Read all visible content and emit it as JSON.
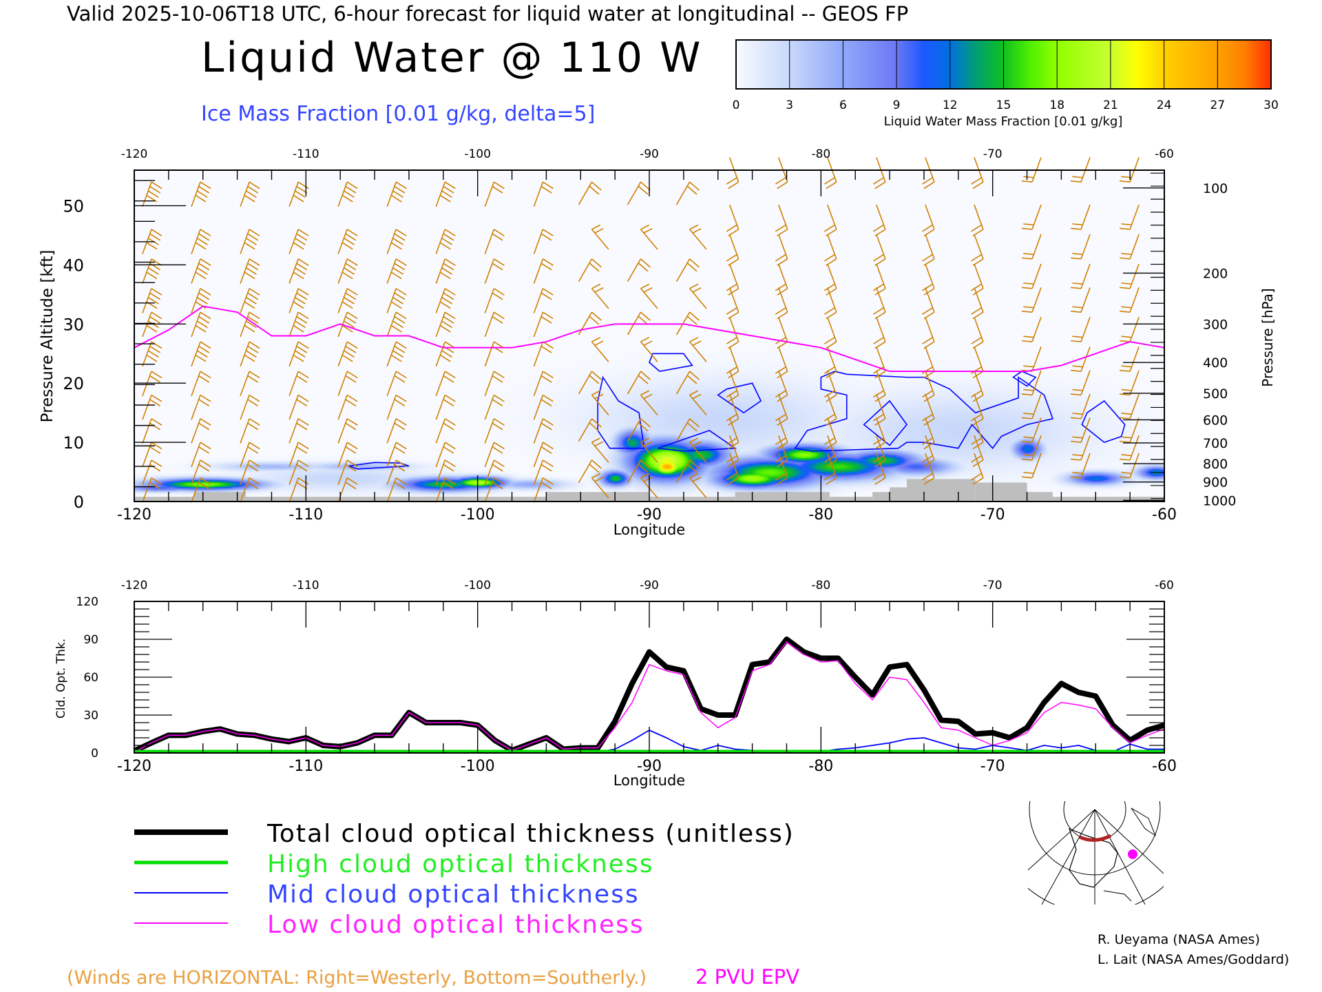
{
  "header": {
    "valid_line": "Valid 2025-10-06T18 UTC, 6-hour forecast for liquid water at longitudinal -- GEOS FP",
    "title": "Liquid Water @ 110 W",
    "subtitle": "Ice Mass Fraction [0.01 g/kg, delta=5]"
  },
  "colorbar": {
    "ticks": [
      "0",
      "3",
      "6",
      "9",
      "12",
      "15",
      "18",
      "21",
      "24",
      "27",
      "30"
    ],
    "label": "Liquid Water Mass Fraction [0.01 g/kg]",
    "stops": [
      [
        0,
        "#f8faff"
      ],
      [
        3,
        "#c8d8fb"
      ],
      [
        6,
        "#90a8fa"
      ],
      [
        9,
        "#6c78f6"
      ],
      [
        10.5,
        "#1e58ff"
      ],
      [
        12,
        "#0070e0"
      ],
      [
        13.5,
        "#00a070"
      ],
      [
        15,
        "#10c020"
      ],
      [
        16.5,
        "#50f000"
      ],
      [
        18,
        "#90ff00"
      ],
      [
        21,
        "#c8ff30"
      ],
      [
        22.5,
        "#ffff00"
      ],
      [
        24,
        "#ffd000"
      ],
      [
        27,
        "#ffa000"
      ],
      [
        28.5,
        "#ff8000"
      ],
      [
        30,
        "#ff3000"
      ]
    ]
  },
  "legend": {
    "total": "Total cloud optical thickness (unitless)",
    "high": "High cloud optical thickness",
    "mid": "Mid cloud optical thickness",
    "low": "Low cloud optical thickness"
  },
  "footer": {
    "winds_note": "(Winds are HORIZONTAL: Right=Westerly, Bottom=Southerly.)",
    "epv_label": "2 PVU EPV",
    "credit1": "R. Ueyama (NASA Ames)",
    "credit2": "L. Lait (NASA Ames/Goddard)"
  },
  "colors": {
    "total": "#000000",
    "high": "#00dd00",
    "mid": "#0000ff",
    "low": "#ff00ff",
    "wind": "#d08000",
    "ice": "#0000ff",
    "ground": "#bebebe",
    "epv": "#ff00ff",
    "track": "#b22222"
  },
  "chart_data": [
    {
      "type": "heatmap",
      "title": "Liquid Water @ 110 W",
      "xlabel": "Longitude",
      "ylabel": "Pressure Altitude [kft]",
      "ylabel_right": "Pressure [hPa]",
      "xlim": [
        -120,
        -60
      ],
      "ylim": [
        0,
        56
      ],
      "x_ticks": [
        "-120",
        "-110",
        "-100",
        "-90",
        "-80",
        "-70",
        "-60"
      ],
      "y_ticks": [
        "0",
        "10",
        "20",
        "30",
        "40",
        "50"
      ],
      "pressure_ticks": [
        {
          "label": "100",
          "kft": 53
        },
        {
          "label": "200",
          "kft": 38.6
        },
        {
          "label": "300",
          "kft": 30
        },
        {
          "label": "400",
          "kft": 23.5
        },
        {
          "label": "500",
          "kft": 18.3
        },
        {
          "label": "600",
          "kft": 13.8
        },
        {
          "label": "700",
          "kft": 9.9
        },
        {
          "label": "800",
          "kft": 6.4
        },
        {
          "label": "900",
          "kft": 3.3
        },
        {
          "label": "1000",
          "kft": 0.2
        }
      ],
      "liquid_water_cells": [
        {
          "lon": -116,
          "kft": 3,
          "dlon": 3,
          "dkft": 0.9,
          "value": 18
        },
        {
          "lon": -118.5,
          "kft": 2.4,
          "dlon": 2,
          "dkft": 0.6,
          "value": 10
        },
        {
          "lon": -112,
          "kft": 6,
          "dlon": 3,
          "dkft": 0.7,
          "value": 5
        },
        {
          "lon": -107,
          "kft": 6,
          "dlon": 3,
          "dkft": 0.7,
          "value": 5
        },
        {
          "lon": -102,
          "kft": 3,
          "dlon": 2.5,
          "dkft": 1.1,
          "value": 15
        },
        {
          "lon": -100,
          "kft": 3.3,
          "dlon": 1.5,
          "dkft": 0.9,
          "value": 20
        },
        {
          "lon": -97,
          "kft": 3,
          "dlon": 2,
          "dkft": 0.8,
          "value": 6
        },
        {
          "lon": -92,
          "kft": 4,
          "dlon": 0.8,
          "dkft": 1.2,
          "value": 15
        },
        {
          "lon": -91,
          "kft": 10,
          "dlon": 0.9,
          "dkft": 2,
          "value": 14
        },
        {
          "lon": -89,
          "kft": 7,
          "dlon": 2,
          "dkft": 3,
          "value": 22
        },
        {
          "lon": -89,
          "kft": 6,
          "dlon": 0.9,
          "dkft": 1.5,
          "value": 26
        },
        {
          "lon": -87,
          "kft": 8,
          "dlon": 1.5,
          "dkft": 2,
          "value": 15
        },
        {
          "lon": -83,
          "kft": 5,
          "dlon": 3,
          "dkft": 2.3,
          "value": 17
        },
        {
          "lon": -84,
          "kft": 4,
          "dlon": 2,
          "dkft": 1.5,
          "value": 19
        },
        {
          "lon": -81,
          "kft": 8,
          "dlon": 2,
          "dkft": 1.5,
          "value": 18
        },
        {
          "lon": -79,
          "kft": 6,
          "dlon": 3,
          "dkft": 2,
          "value": 16
        },
        {
          "lon": -76.5,
          "kft": 7,
          "dlon": 2,
          "dkft": 1.5,
          "value": 15
        },
        {
          "lon": -74.5,
          "kft": 6,
          "dlon": 2,
          "dkft": 1.3,
          "value": 10
        },
        {
          "lon": -68,
          "kft": 9,
          "dlon": 0.8,
          "dkft": 1.5,
          "value": 12
        },
        {
          "lon": -64,
          "kft": 4,
          "dlon": 1.5,
          "dkft": 1,
          "value": 12
        },
        {
          "lon": -60.5,
          "kft": 5,
          "dlon": 1,
          "dkft": 1,
          "value": 13
        },
        {
          "lon": -86,
          "kft": 14,
          "dlon": 7,
          "dkft": 6,
          "value": 3
        },
        {
          "lon": -72,
          "kft": 12,
          "dlon": 7,
          "dkft": 6,
          "value": 3
        },
        {
          "lon": -108,
          "kft": 4,
          "dlon": 5,
          "dkft": 2,
          "value": 3
        }
      ],
      "ice_contours": [
        [
          [
            -92.7,
            21
          ],
          [
            -91.8,
            17
          ],
          [
            -90.6,
            15
          ],
          [
            -90.3,
            9
          ],
          [
            -92.3,
            9
          ],
          [
            -93,
            12
          ],
          [
            -93,
            17
          ]
        ],
        [
          [
            -89.8,
            25
          ],
          [
            -88,
            25
          ],
          [
            -87.5,
            23
          ],
          [
            -89.4,
            22
          ],
          [
            -90,
            23.5
          ]
        ],
        [
          [
            -89.5,
            9
          ],
          [
            -86.5,
            12
          ],
          [
            -85,
            9
          ],
          [
            -88,
            8.5
          ]
        ],
        [
          [
            -85.5,
            19
          ],
          [
            -84,
            20
          ],
          [
            -83.5,
            17
          ],
          [
            -84.5,
            15
          ],
          [
            -86,
            18
          ]
        ],
        [
          [
            -79.2,
            22
          ],
          [
            -78.5,
            21.5
          ],
          [
            -75,
            21
          ],
          [
            -74,
            21
          ],
          [
            -72.5,
            19
          ],
          [
            -71,
            15
          ],
          [
            -68.5,
            17.5
          ],
          [
            -68.5,
            21
          ],
          [
            -67,
            18
          ],
          [
            -66.5,
            14
          ],
          [
            -68,
            13
          ],
          [
            -69.5,
            11
          ],
          [
            -70,
            9
          ],
          [
            -71.2,
            13
          ],
          [
            -72,
            9
          ],
          [
            -74,
            10
          ],
          [
            -75,
            10
          ],
          [
            -75.5,
            9
          ],
          [
            -80.5,
            8.5
          ],
          [
            -81.5,
            9
          ],
          [
            -80.8,
            12
          ],
          [
            -78.5,
            14
          ],
          [
            -78.5,
            18
          ],
          [
            -80,
            19
          ],
          [
            -80,
            21
          ]
        ],
        [
          [
            -76,
            17
          ],
          [
            -75,
            13
          ],
          [
            -76,
            9.5
          ],
          [
            -77.5,
            13
          ]
        ],
        [
          [
            -63.5,
            17
          ],
          [
            -62.3,
            13
          ],
          [
            -62.5,
            11
          ],
          [
            -63.5,
            10
          ],
          [
            -64.8,
            13
          ],
          [
            -64.5,
            15
          ]
        ],
        [
          [
            -68.3,
            22
          ],
          [
            -68.8,
            21
          ],
          [
            -68,
            19.5
          ],
          [
            -67.5,
            21
          ]
        ],
        [
          [
            -107.5,
            6
          ],
          [
            -106,
            6.6
          ],
          [
            -104.5,
            6.5
          ],
          [
            -104,
            6
          ],
          [
            -107,
            5.5
          ]
        ]
      ],
      "epv_2pvu_kft": {
        "lon": [
          -120,
          -118,
          -116,
          -114,
          -112,
          -110,
          -108,
          -106,
          -104,
          -102,
          -100,
          -98,
          -96,
          -94,
          -92,
          -90,
          -88,
          -86,
          -84,
          -82,
          -80,
          -78,
          -76,
          -74,
          -72,
          -70,
          -68,
          -66,
          -64,
          -62,
          -60
        ],
        "kft": [
          26,
          29,
          33,
          32,
          28,
          28,
          30,
          28,
          28,
          26,
          26,
          26,
          27,
          29,
          30,
          30,
          30,
          29,
          28,
          27,
          26,
          24,
          22,
          22,
          22,
          22,
          22,
          23,
          25,
          27,
          26
        ]
      },
      "surface_kft": [
        {
          "from": -120,
          "to": -116.5,
          "kft": 0.8
        },
        {
          "from": -116.5,
          "to": -113.5,
          "kft": 1.6
        },
        {
          "from": -113.5,
          "to": -96,
          "kft": 0.8
        },
        {
          "from": -96,
          "to": -90,
          "kft": 1.6
        },
        {
          "from": -90,
          "to": -85,
          "kft": 0.8
        },
        {
          "from": -85,
          "to": -79.5,
          "kft": 1.6
        },
        {
          "from": -79.5,
          "to": -77,
          "kft": 0.8
        },
        {
          "from": -77,
          "to": -76,
          "kft": 1.6
        },
        {
          "from": -76,
          "to": -75,
          "kft": 2.4
        },
        {
          "from": -75,
          "to": -71,
          "kft": 3.8
        },
        {
          "from": -71,
          "to": -68,
          "kft": 3.2
        },
        {
          "from": -68,
          "to": -66.5,
          "kft": 1.6
        },
        {
          "from": -66.5,
          "to": -60,
          "kft": 0.8
        }
      ]
    },
    {
      "type": "line",
      "xlabel": "Longitude",
      "ylabel": "Cld. Opt. Thk.",
      "xlim": [
        -120,
        -60
      ],
      "ylim": [
        0,
        120
      ],
      "x_ticks": [
        "-120",
        "-110",
        "-100",
        "-90",
        "-80",
        "-70",
        "-60"
      ],
      "y_ticks": [
        "0",
        "30",
        "60",
        "90",
        "120"
      ],
      "x": [
        -120,
        -119,
        -118,
        -117,
        -116,
        -115,
        -114,
        -113,
        -112,
        -111,
        -110,
        -109,
        -108,
        -107,
        -106,
        -105,
        -104,
        -103,
        -102,
        -101,
        -100,
        -99,
        -98,
        -97,
        -96,
        -95,
        -94,
        -93,
        -92,
        -91,
        -90,
        -89,
        -88,
        -87,
        -86,
        -85,
        -84,
        -83,
        -82,
        -81,
        -80,
        -79,
        -78,
        -77,
        -76,
        -75,
        -74,
        -73,
        -72,
        -71,
        -70,
        -69,
        -68,
        -67,
        -66,
        -65,
        -64,
        -63,
        -62,
        -61,
        -60
      ],
      "series": [
        {
          "name": "Total cloud optical thickness (unitless)",
          "values": [
            0,
            8,
            14,
            14,
            17,
            19,
            15,
            14,
            11,
            9,
            12,
            6,
            5,
            8,
            14,
            14,
            32,
            24,
            24,
            24,
            22,
            10,
            2,
            7,
            12,
            3,
            4,
            4,
            25,
            55,
            80,
            68,
            65,
            35,
            30,
            30,
            70,
            72,
            90,
            80,
            75,
            75,
            60,
            46,
            68,
            70,
            50,
            26,
            25,
            15,
            16,
            12,
            20,
            40,
            55,
            48,
            45,
            22,
            10,
            18,
            22
          ]
        },
        {
          "name": "High cloud optical thickness",
          "values": [
            0,
            0,
            0,
            0,
            0,
            0,
            0,
            0,
            0,
            0,
            0,
            0,
            0,
            0,
            0,
            0,
            0,
            0,
            0,
            0,
            0,
            0,
            0,
            0,
            0,
            0,
            0,
            0,
            0,
            0,
            0,
            0,
            0,
            0,
            0,
            0,
            0,
            0,
            0,
            0,
            0,
            0,
            0,
            0,
            0,
            0,
            0,
            0,
            0,
            0,
            0,
            0,
            0,
            0,
            0,
            0,
            0,
            0,
            0,
            0,
            0
          ]
        },
        {
          "name": "Mid cloud optical thickness",
          "values": [
            0,
            0,
            0,
            0,
            0,
            0,
            0,
            0,
            0,
            0,
            0,
            0,
            0,
            0,
            0,
            0,
            0,
            0,
            0,
            0,
            0,
            0,
            0,
            0,
            0,
            0,
            0,
            0,
            3,
            10,
            18,
            12,
            5,
            2,
            6,
            3,
            2,
            0,
            0,
            0,
            1,
            3,
            4,
            6,
            8,
            11,
            12,
            8,
            4,
            3,
            6,
            4,
            2,
            6,
            4,
            6,
            2,
            1,
            7,
            3,
            3
          ]
        },
        {
          "name": "Low cloud optical thickness",
          "values": [
            0,
            8,
            14,
            14,
            17,
            19,
            15,
            14,
            11,
            9,
            12,
            6,
            5,
            8,
            14,
            14,
            32,
            24,
            24,
            24,
            22,
            10,
            2,
            7,
            12,
            3,
            4,
            4,
            20,
            40,
            70,
            65,
            62,
            32,
            20,
            28,
            65,
            70,
            88,
            78,
            72,
            73,
            55,
            42,
            60,
            58,
            40,
            20,
            18,
            12,
            6,
            10,
            16,
            32,
            40,
            38,
            35,
            20,
            8,
            14,
            19
          ]
        }
      ]
    }
  ]
}
